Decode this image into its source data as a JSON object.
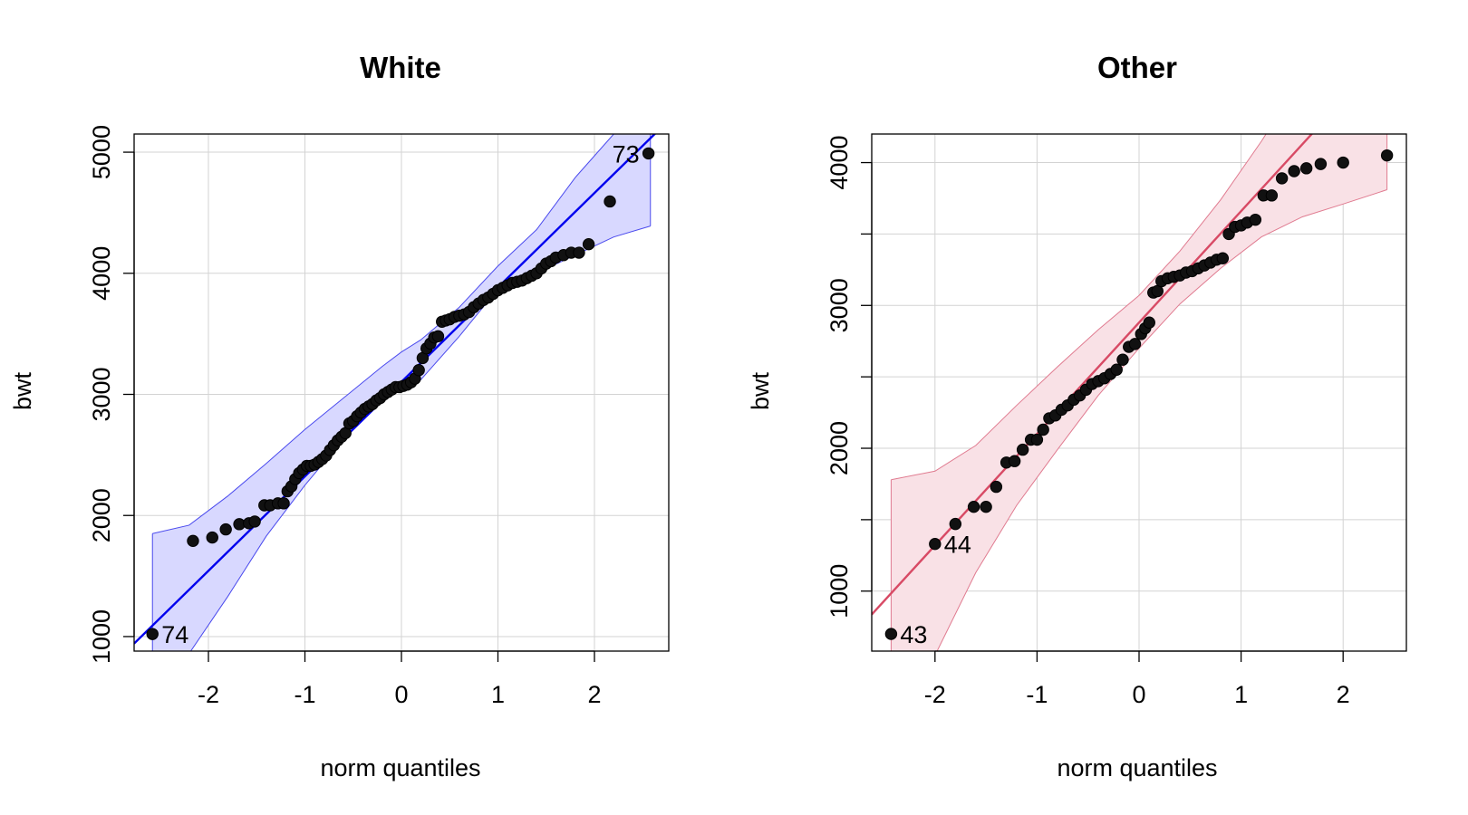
{
  "chart_data": [
    {
      "type": "scatter",
      "title": "White",
      "xlabel": "norm quantiles",
      "ylabel": "bwt",
      "xlim": [
        -2.77,
        2.77
      ],
      "ylim": [
        880,
        5150
      ],
      "xticks": [
        -2,
        -1,
        0,
        1,
        2
      ],
      "xtick_labels": [
        "-2",
        "-1",
        "0",
        "1",
        "2"
      ],
      "yticks": [
        1000,
        2000,
        3000,
        4000,
        5000
      ],
      "ytick_labels": [
        "1000",
        "2000",
        "3000",
        "4000",
        "5000"
      ],
      "grid": true,
      "colors": {
        "line": "#0000ee",
        "band_fill": "#d8d8ff",
        "band_edge": "#4a4aee",
        "points": "#000000"
      },
      "reference_line": {
        "intercept": 3103,
        "slope": 780
      },
      "confidence_band": {
        "x": [
          -2.58,
          -2.2,
          -1.8,
          -1.4,
          -1.0,
          -0.6,
          -0.2,
          0.0,
          0.2,
          0.6,
          1.0,
          1.4,
          1.8,
          2.2,
          2.58
        ],
        "lower": [
          850,
          860,
          1330,
          1830,
          2250,
          2630,
          2950,
          3100,
          3120,
          3480,
          3870,
          4000,
          4150,
          4300,
          4390
        ],
        "upper": [
          1850,
          1920,
          2160,
          2430,
          2710,
          2970,
          3230,
          3350,
          3450,
          3720,
          4060,
          4360,
          4790,
          5150,
          5300
        ]
      },
      "points": {
        "x": [
          -2.58,
          -2.16,
          -1.96,
          -1.82,
          -1.68,
          -1.58,
          -1.52,
          -1.42,
          -1.36,
          -1.28,
          -1.22,
          -1.18,
          -1.14,
          -1.1,
          -1.06,
          -1.02,
          -0.98,
          -0.94,
          -0.9,
          -0.86,
          -0.82,
          -0.78,
          -0.74,
          -0.7,
          -0.66,
          -0.62,
          -0.58,
          -0.54,
          -0.5,
          -0.46,
          -0.42,
          -0.38,
          -0.34,
          -0.3,
          -0.26,
          -0.22,
          -0.18,
          -0.14,
          -0.1,
          -0.06,
          -0.02,
          0.02,
          0.06,
          0.1,
          0.14,
          0.18,
          0.22,
          0.26,
          0.3,
          0.34,
          0.38,
          0.42,
          0.46,
          0.5,
          0.55,
          0.6,
          0.65,
          0.7,
          0.75,
          0.8,
          0.85,
          0.9,
          0.95,
          1.0,
          1.05,
          1.1,
          1.15,
          1.2,
          1.25,
          1.3,
          1.35,
          1.4,
          1.45,
          1.5,
          1.55,
          1.6,
          1.68,
          1.76,
          1.84,
          1.94,
          2.16,
          2.56
        ],
        "y": [
          1021,
          1790,
          1818,
          1885,
          1928,
          1936,
          1950,
          2084,
          2084,
          2100,
          2100,
          2200,
          2240,
          2300,
          2350,
          2380,
          2410,
          2410,
          2420,
          2442,
          2466,
          2495,
          2540,
          2580,
          2620,
          2650,
          2680,
          2760,
          2780,
          2820,
          2850,
          2880,
          2900,
          2920,
          2950,
          2970,
          3000,
          3020,
          3040,
          3060,
          3060,
          3070,
          3080,
          3100,
          3130,
          3200,
          3300,
          3380,
          3420,
          3470,
          3480,
          3600,
          3610,
          3620,
          3640,
          3650,
          3660,
          3680,
          3720,
          3750,
          3780,
          3800,
          3830,
          3860,
          3880,
          3900,
          3920,
          3930,
          3940,
          3960,
          3980,
          4000,
          4040,
          4080,
          4100,
          4130,
          4150,
          4170,
          4170,
          4240,
          4593,
          4990
        ]
      },
      "labeled_points": [
        {
          "label": "74",
          "x": -2.58,
          "y": 1021
        },
        {
          "label": "73",
          "x": 2.56,
          "y": 4990
        }
      ]
    },
    {
      "type": "scatter",
      "title": "Other",
      "xlabel": "norm quantiles",
      "ylabel": "bwt",
      "xlim": [
        -2.62,
        2.62
      ],
      "ylim": [
        580,
        4200
      ],
      "xticks": [
        -2,
        -1,
        0,
        1,
        2
      ],
      "xtick_labels": [
        "-2",
        "-1",
        "0",
        "1",
        "2"
      ],
      "yticks": [
        1000,
        2000,
        3000,
        4000
      ],
      "ytick_labels": [
        "1000",
        "2000",
        "3000",
        "4000"
      ],
      "minor_yticks": [
        1500,
        2500,
        3500
      ],
      "grid": true,
      "colors": {
        "line": "#d84a65",
        "band_fill": "#f9e1e6",
        "band_edge": "#e07b90",
        "points": "#000000"
      },
      "reference_line": {
        "intercept": 2880,
        "slope": 780
      },
      "confidence_band": {
        "x": [
          -2.43,
          -2.0,
          -1.6,
          -1.2,
          -0.8,
          -0.4,
          0.0,
          0.4,
          0.8,
          1.2,
          1.6,
          2.0,
          2.43
        ],
        "lower": [
          420,
          550,
          1130,
          1600,
          1990,
          2370,
          2700,
          3010,
          3260,
          3480,
          3620,
          3710,
          3810
        ],
        "upper": [
          1780,
          1840,
          2020,
          2300,
          2570,
          2830,
          3070,
          3380,
          3740,
          4150,
          4600,
          5050,
          5500
        ]
      },
      "points": {
        "x": [
          -2.43,
          -2.0,
          -1.8,
          -1.62,
          -1.5,
          -1.4,
          -1.3,
          -1.22,
          -1.14,
          -1.06,
          -1.0,
          -0.94,
          -0.88,
          -0.82,
          -0.76,
          -0.7,
          -0.64,
          -0.58,
          -0.52,
          -0.46,
          -0.4,
          -0.34,
          -0.28,
          -0.22,
          -0.16,
          -0.1,
          -0.04,
          0.02,
          0.06,
          0.1,
          0.14,
          0.18,
          0.22,
          0.28,
          0.34,
          0.4,
          0.46,
          0.52,
          0.58,
          0.64,
          0.7,
          0.76,
          0.82,
          0.88,
          0.94,
          1.0,
          1.06,
          1.14,
          1.22,
          1.3,
          1.4,
          1.52,
          1.64,
          1.78,
          2.0,
          2.43
        ],
        "y": [
          700,
          1330,
          1470,
          1590,
          1590,
          1730,
          1900,
          1910,
          1990,
          2060,
          2060,
          2130,
          2210,
          2230,
          2270,
          2300,
          2340,
          2370,
          2410,
          2450,
          2470,
          2490,
          2520,
          2550,
          2620,
          2710,
          2730,
          2800,
          2840,
          2880,
          3090,
          3100,
          3170,
          3190,
          3200,
          3210,
          3230,
          3240,
          3260,
          3280,
          3300,
          3320,
          3330,
          3500,
          3550,
          3560,
          3580,
          3600,
          3770,
          3770,
          3890,
          3940,
          3960,
          3990,
          4000,
          4050
        ]
      },
      "labeled_points": [
        {
          "label": "44",
          "x": -2.0,
          "y": 1330
        },
        {
          "label": "43",
          "x": -2.43,
          "y": 700
        }
      ]
    }
  ]
}
